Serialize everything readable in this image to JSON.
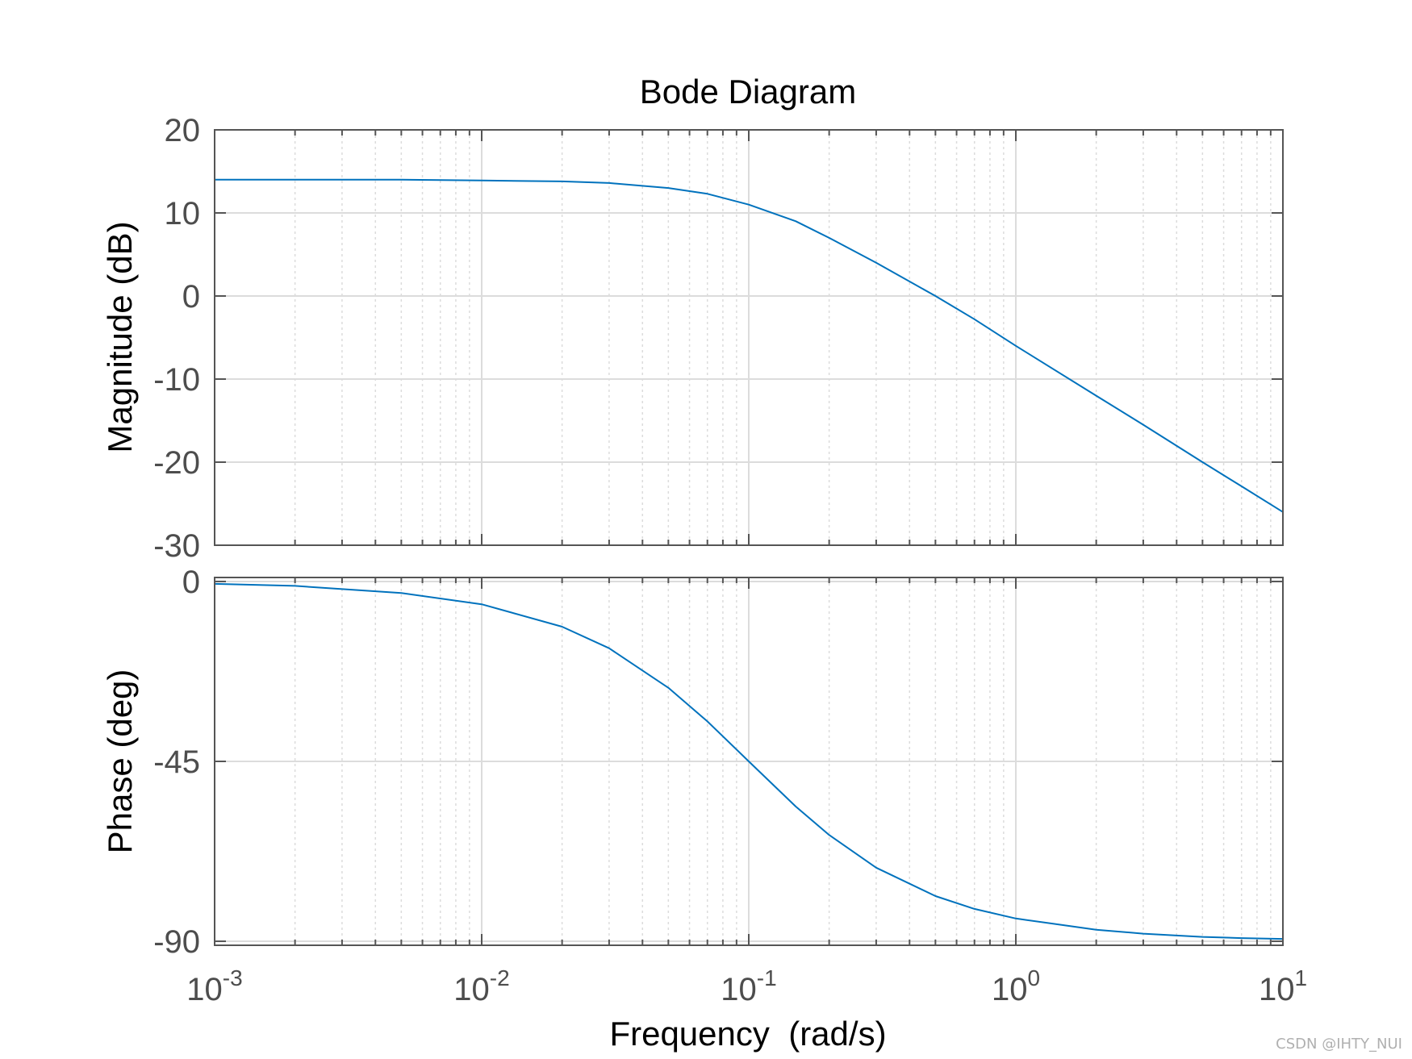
{
  "chart_data": {
    "title": "Bode Diagram",
    "xlabel": "Frequency  (rad/s)",
    "xscale": "log",
    "xlim": [
      0.001,
      10
    ],
    "x_tick_labels": [
      {
        "base": "10",
        "exp": "-3"
      },
      {
        "base": "10",
        "exp": "-2"
      },
      {
        "base": "10",
        "exp": "-1"
      },
      {
        "base": "10",
        "exp": "0"
      },
      {
        "base": "10",
        "exp": "1"
      }
    ],
    "grid": true,
    "line_color": "#0072bd",
    "grid_color": "#dcdcdc",
    "axis_color": "#555555",
    "panels": [
      {
        "type": "line",
        "ylabel": "Magnitude (dB)",
        "ylim": [
          -30,
          20
        ],
        "yticks": [
          20,
          10,
          0,
          -10,
          -20,
          -30
        ],
        "y_tick_labels": [
          "20",
          "10",
          "0",
          "-10",
          "-20",
          "-30"
        ],
        "series": [
          {
            "x": [
              0.001,
              0.002,
              0.005,
              0.01,
              0.02,
              0.03,
              0.05,
              0.07,
              0.1,
              0.15,
              0.2,
              0.3,
              0.5,
              0.7,
              1,
              2,
              3,
              5,
              7,
              10
            ],
            "y": [
              14.0,
              14.0,
              14.0,
              13.9,
              13.8,
              13.6,
              13.0,
              12.3,
              11.0,
              9.0,
              7.0,
              4.0,
              0.0,
              -2.8,
              -6.0,
              -12.0,
              -15.5,
              -20.0,
              -22.9,
              -26.0
            ]
          }
        ]
      },
      {
        "type": "line",
        "ylabel": "Phase (deg)",
        "ylim": [
          -91,
          1
        ],
        "yticks": [
          0,
          -45,
          -90
        ],
        "y_tick_labels": [
          "0",
          "-45",
          "-90"
        ],
        "series": [
          {
            "x": [
              0.001,
              0.002,
              0.005,
              0.01,
              0.02,
              0.03,
              0.05,
              0.07,
              0.1,
              0.15,
              0.2,
              0.3,
              0.5,
              0.7,
              1,
              2,
              3,
              5,
              7,
              10
            ],
            "y": [
              -0.6,
              -1.1,
              -2.9,
              -5.7,
              -11.3,
              -16.7,
              -26.6,
              -35.0,
              -45.0,
              -56.3,
              -63.4,
              -71.6,
              -78.7,
              -81.9,
              -84.3,
              -87.1,
              -88.1,
              -88.9,
              -89.2,
              -89.4
            ]
          }
        ]
      }
    ]
  },
  "watermark": "CSDN @IHTY_NUI"
}
